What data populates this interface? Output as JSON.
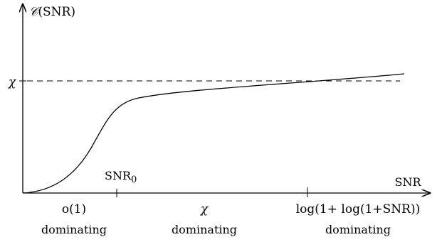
{
  "y_axis_label_prefix": "𝒞",
  "y_axis_label_arg": "(SNR)",
  "x_axis_label": "SNR",
  "chi_level_label": "χ",
  "tick1_label_main": "SNR",
  "tick1_label_sub": "0",
  "regions": [
    {
      "top": "o(1)",
      "bottom": "dominating"
    },
    {
      "top": "χ",
      "bottom": "dominating"
    },
    {
      "top": "log(1+ log(1+SNR))",
      "bottom": "dominating"
    }
  ]
}
